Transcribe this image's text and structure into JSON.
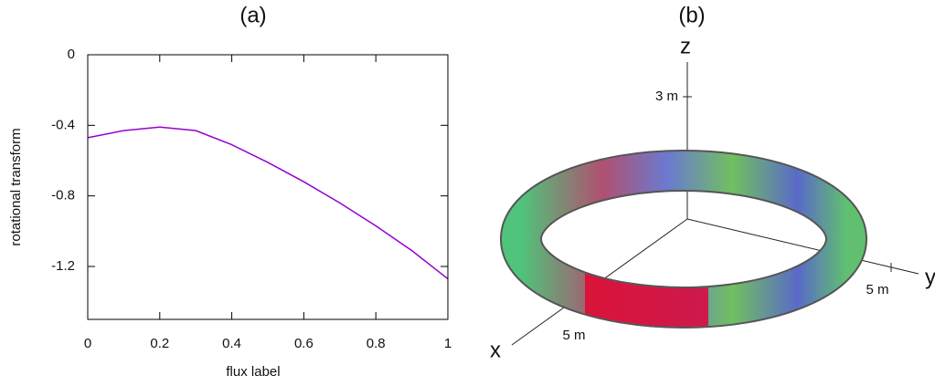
{
  "chart_data": {
    "type": "line",
    "title": "(a)",
    "x_label": "flux label",
    "y_label": "rotational transform",
    "x": [
      0,
      0.1,
      0.2,
      0.3,
      0.4,
      0.5,
      0.6,
      0.7,
      0.8,
      0.9,
      1
    ],
    "values": [
      -0.47,
      -0.43,
      -0.41,
      -0.43,
      -0.51,
      -0.61,
      -0.72,
      -0.84,
      -0.97,
      -1.11,
      -1.27
    ],
    "color": "#9400d3",
    "xlim": [
      0,
      1
    ],
    "xticks": [
      0,
      0.2,
      0.4,
      0.6,
      0.8,
      1
    ],
    "ylim": [
      -1.5,
      0
    ],
    "yticks": [
      0,
      -0.4,
      -0.8,
      -1.2
    ]
  },
  "illustration": {
    "title": "(b)",
    "axis_z": "z",
    "axis_y": "y",
    "axis_x": "x",
    "z_tick": "3 m",
    "y_tick": "5 m",
    "x_tick": "5 m"
  }
}
